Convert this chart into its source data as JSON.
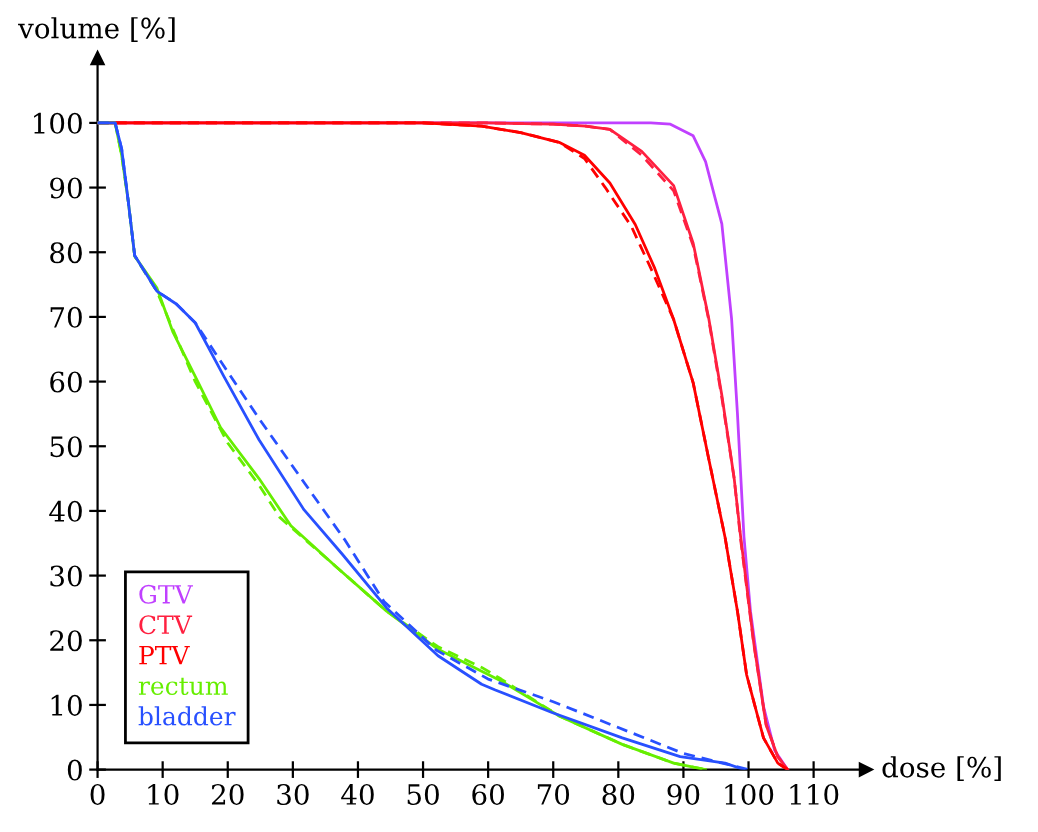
{
  "chart_data": {
    "type": "line",
    "xlabel": "dose [%]",
    "ylabel": "volume [%]",
    "xlim": [
      0,
      118
    ],
    "ylim": [
      0,
      110
    ],
    "xticks": [
      0,
      10,
      20,
      30,
      40,
      50,
      60,
      70,
      80,
      90,
      100,
      110
    ],
    "yticks": [
      0,
      10,
      20,
      30,
      40,
      50,
      60,
      70,
      80,
      90,
      100
    ],
    "grid": false,
    "legend": "bottom left",
    "marker": "none",
    "series": [
      {
        "name": "GTV",
        "color": "#c040ff",
        "line_style": "solid",
        "x": [
          0,
          60,
          85,
          88,
          91.5,
          93.4,
          95.9,
          97.4,
          98.3,
          99.3,
          100.3,
          102.3,
          104,
          106
        ],
        "values": [
          100,
          100,
          100,
          99.8,
          98,
          94,
          84.4,
          69.7,
          55,
          36,
          24.5,
          9.8,
          3,
          0
        ]
      },
      {
        "name": "CTV",
        "color": "#ff2040",
        "line_style": "solid",
        "x": [
          0,
          60,
          70,
          75,
          78.7,
          83.6,
          88.5,
          91.5,
          93.9,
          95.9,
          97.8,
          98.8,
          100.8,
          102.7,
          104.5,
          106
        ],
        "values": [
          100,
          100,
          99.8,
          99.5,
          99,
          95.6,
          90.3,
          81.4,
          69.7,
          57.9,
          45,
          35.9,
          19.6,
          6.9,
          2,
          0
        ]
      },
      {
        "color": "#ff2040",
        "line_style": "dashed",
        "x": [
          0,
          60,
          70,
          75,
          78.7,
          83.6,
          88.5,
          91.5,
          93.9,
          95.9,
          97.8,
          98.8,
          100.8,
          102.7,
          104.5,
          106
        ],
        "values": [
          100,
          100,
          99.8,
          99.5,
          99,
          95,
          89.5,
          81,
          69.5,
          57.5,
          45,
          35.5,
          19.5,
          7,
          2,
          0
        ]
      },
      {
        "name": "PTV",
        "color": "#ff0000",
        "line_style": "solid",
        "x": [
          0,
          50,
          59,
          65,
          70.9,
          74.8,
          78.7,
          82.6,
          85.6,
          88.5,
          91.5,
          93.9,
          96.4,
          98.3,
          99.7,
          102.3,
          104.5,
          106
        ],
        "values": [
          100,
          100,
          99.5,
          98.5,
          97,
          95,
          90.7,
          84.3,
          77.5,
          69.6,
          59.8,
          48,
          35.9,
          24.5,
          14.7,
          4.9,
          1,
          0
        ]
      },
      {
        "color": "#ff0000",
        "line_style": "dashed",
        "x": [
          0,
          50,
          59,
          65,
          70.9,
          74.8,
          78,
          82,
          85,
          88.5,
          91.5,
          93.9,
          96.4,
          98.3,
          99.7,
          102.3,
          104.5,
          106
        ],
        "values": [
          100,
          100,
          99.5,
          98.5,
          97,
          94.5,
          90,
          84,
          77.5,
          69.6,
          59.8,
          48,
          35.9,
          24.5,
          14.7,
          4.9,
          1,
          0
        ]
      },
      {
        "name": "rectum",
        "color": "#66ee00",
        "line_style": "solid",
        "x": [
          0,
          2.7,
          3.7,
          4.7,
          5.7,
          9.1,
          11.6,
          15,
          18.9,
          24.8,
          29.7,
          36.6,
          44.4,
          52.3,
          59,
          62,
          70.9,
          80.6,
          88.5,
          93.4
        ],
        "values": [
          100,
          100,
          95,
          88,
          79.4,
          74.5,
          67.6,
          60.8,
          52.9,
          45,
          37.7,
          31.4,
          24.5,
          18.6,
          15.2,
          13.7,
          8.3,
          3.9,
          1,
          0
        ]
      },
      {
        "color": "#66ee00",
        "line_style": "dashed",
        "x": [
          0,
          2.7,
          3.7,
          4.7,
          5.7,
          9.1,
          11.6,
          15,
          20,
          24.8,
          28,
          36.6,
          44.4,
          52.3,
          59,
          62,
          70.9,
          80.6,
          88.5,
          93.4
        ],
        "values": [
          100,
          100,
          95,
          88,
          79.4,
          74,
          68,
          60,
          50.5,
          44,
          39,
          31.4,
          24.5,
          19,
          15.8,
          14,
          8.3,
          3.9,
          1,
          0
        ]
      },
      {
        "name": "bladder",
        "color": "#2850ff",
        "line_style": "solid",
        "x": [
          0,
          2.7,
          3.7,
          4.7,
          5.7,
          9.1,
          12.1,
          15,
          19.4,
          24.8,
          31.7,
          37.6,
          44.4,
          52.3,
          59,
          61.1,
          69.9,
          80.6,
          89.5,
          96.4,
          99.3
        ],
        "values": [
          100,
          100,
          96,
          88,
          79.5,
          74,
          72,
          69.1,
          60.8,
          51,
          40.2,
          33.3,
          25,
          17.6,
          13.2,
          12.3,
          8.8,
          4.9,
          2,
          1,
          0
        ]
      },
      {
        "color": "#2850ff",
        "line_style": "dashed",
        "x": [
          0,
          2.7,
          3.7,
          4.7,
          5.7,
          9.1,
          12.1,
          15,
          20,
          25,
          32,
          38,
          44,
          52,
          60,
          70,
          80,
          90,
          100
        ],
        "values": [
          100,
          100,
          96,
          88,
          79.5,
          74,
          72,
          69.1,
          61.5,
          54,
          44,
          35.5,
          26,
          18.5,
          14,
          10.5,
          6.5,
          2.5,
          0
        ]
      }
    ]
  }
}
